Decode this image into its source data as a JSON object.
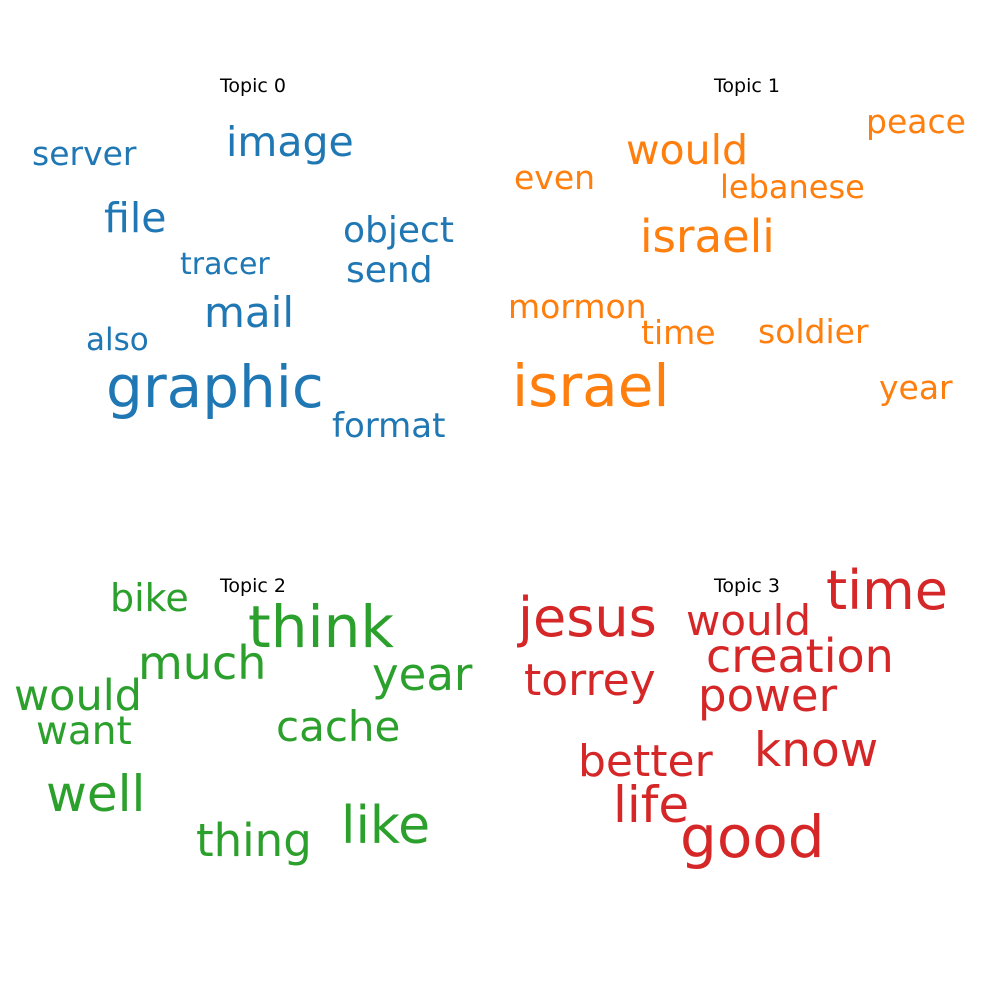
{
  "topics": [
    {
      "title": "Topic 0",
      "color": "#1f77b4",
      "words": [
        "graphic",
        "image",
        "mail",
        "file",
        "object",
        "send",
        "format",
        "server",
        "tracer",
        "also"
      ]
    },
    {
      "title": "Topic 1",
      "color": "#ff7f0e",
      "words": [
        "israel",
        "israeli",
        "would",
        "peace",
        "even",
        "lebanese",
        "mormon",
        "time",
        "soldier",
        "year"
      ]
    },
    {
      "title": "Topic 2",
      "color": "#2ca02c",
      "words": [
        "think",
        "much",
        "bike",
        "year",
        "would",
        "want",
        "cache",
        "well",
        "like",
        "thing"
      ]
    },
    {
      "title": "Topic 3",
      "color": "#d62728",
      "words": [
        "time",
        "jesus",
        "would",
        "creation",
        "torrey",
        "power",
        "know",
        "better",
        "life",
        "good"
      ]
    }
  ]
}
